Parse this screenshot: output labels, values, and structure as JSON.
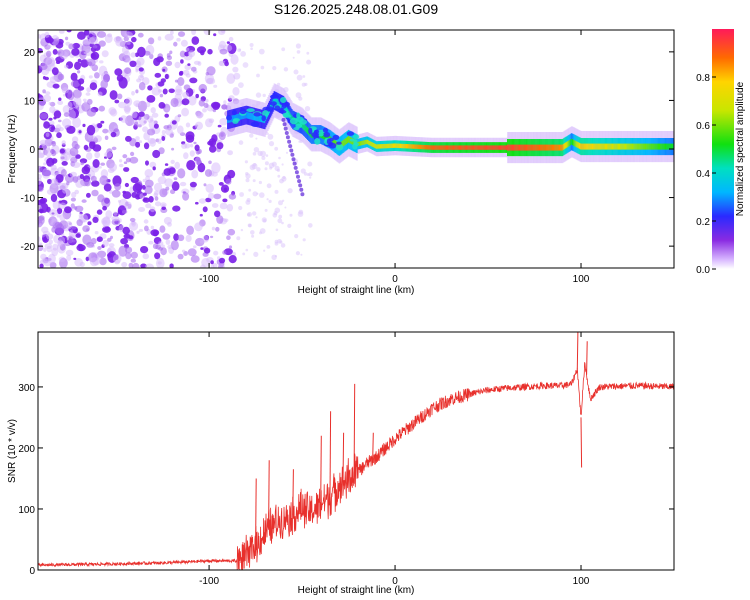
{
  "title": "S126.2025.248.08.01.G09",
  "colors": {
    "snr_line": "#e8302c",
    "spec_low": "#7a1fe8",
    "spec_mid": "#1ab7e6",
    "spec_high": "#ef2a2a",
    "axis": "#000000"
  },
  "chart_data": [
    {
      "type": "heatmap",
      "name": "spectrogram",
      "xlabel": "Height of straight line (km)",
      "ylabel": "Frequency (Hz)",
      "xlim": [
        -192,
        150
      ],
      "ylim": [
        -24.5,
        24.5
      ],
      "xticks": [
        -100,
        0,
        100
      ],
      "xtick_labels": [
        "-100",
        "0",
        "100"
      ],
      "yticks": [
        -20,
        -10,
        0,
        10,
        20
      ],
      "ytick_labels": [
        "-20",
        "-10",
        "0",
        "10",
        "20"
      ],
      "noise_region_km": [
        -192,
        -85
      ],
      "trace": {
        "description_points_km": [
          -90,
          -80,
          -70,
          -65,
          -60,
          -55,
          -50,
          -45,
          -40,
          -35,
          -30,
          -25,
          -20,
          -15,
          -10,
          0,
          20,
          60,
          90,
          95,
          100,
          150
        ],
        "frequency_hz": [
          6,
          7,
          6,
          10,
          9,
          6,
          5,
          3,
          3,
          2,
          0.5,
          2,
          1,
          1.5,
          0.5,
          0.7,
          0.3,
          0.3,
          0.3,
          1.5,
          0.5,
          0.5
        ],
        "amplitude": [
          0.3,
          0.3,
          0.35,
          0.4,
          0.4,
          0.45,
          0.45,
          0.5,
          0.5,
          0.55,
          0.6,
          0.6,
          0.6,
          0.65,
          0.7,
          0.75,
          0.9,
          0.95,
          0.85,
          0.5,
          0.8,
          0.5
        ]
      },
      "colorbar": {
        "label": "Normalized spectral amplitude",
        "range": [
          0,
          1
        ],
        "ticks": [
          0.0,
          0.2,
          0.4,
          0.6,
          0.8
        ],
        "tick_labels": [
          "0.0",
          "0.2",
          "0.4",
          "0.6",
          "0.8"
        ]
      }
    },
    {
      "type": "line",
      "name": "snr",
      "xlabel": "Height of straight line (km)",
      "ylabel": "SNR (10 * v/v)",
      "xlim": [
        -192,
        150
      ],
      "ylim": [
        0,
        390
      ],
      "xticks": [
        -100,
        0,
        100
      ],
      "xtick_labels": [
        "-100",
        "0",
        "100"
      ],
      "yticks": [
        0,
        100,
        200,
        300
      ],
      "ytick_labels": [
        "0",
        "100",
        "200",
        "300"
      ],
      "series": [
        {
          "name": "SNR",
          "x": [
            -192,
            -150,
            -120,
            -100,
            -85,
            -80,
            -75,
            -70,
            -65,
            -60,
            -55,
            -50,
            -45,
            -40,
            -35,
            -30,
            -25,
            -20,
            -15,
            -10,
            -5,
            0,
            10,
            20,
            30,
            40,
            50,
            60,
            70,
            80,
            90,
            95,
            98,
            100,
            102,
            105,
            110,
            130,
            150
          ],
          "values": [
            8,
            10,
            12,
            15,
            15,
            22,
            40,
            60,
            75,
            85,
            90,
            100,
            95,
            110,
            120,
            140,
            150,
            160,
            175,
            185,
            200,
            215,
            240,
            265,
            280,
            288,
            295,
            298,
            300,
            302,
            302,
            305,
            330,
            250,
            340,
            280,
            300,
            302,
            300
          ],
          "spikes_x": [
            -75,
            -68,
            -55,
            -40,
            -35,
            -28,
            -22,
            -12,
            98,
            100,
            103
          ],
          "spikes_y": [
            150,
            180,
            165,
            220,
            260,
            225,
            305,
            225,
            390,
            168,
            375
          ]
        }
      ]
    }
  ]
}
